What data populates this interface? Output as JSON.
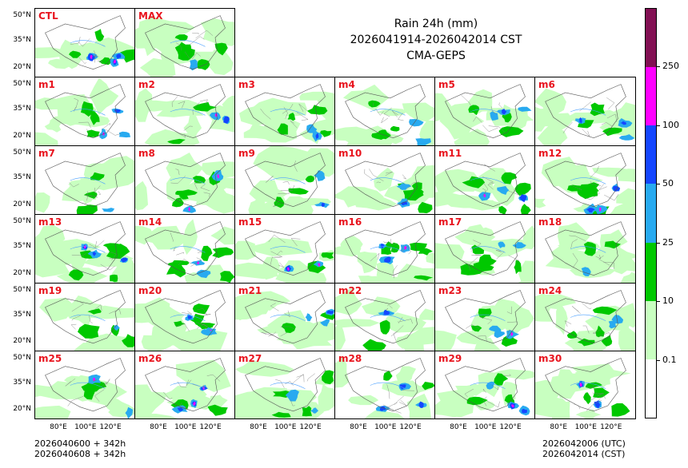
{
  "title": {
    "line1": "Rain 24h (mm)",
    "line2": "2026041914-2026042014 CST",
    "line3": "CMA-GEPS"
  },
  "footer": {
    "left_line1": "2026040600 + 342h",
    "left_line2": "2026040608 + 342h",
    "right_line1": "2026042006 (UTC)",
    "right_line2": "2026042014 (CST)"
  },
  "axes": {
    "lat_labels": [
      "50°N",
      "35°N",
      "20°N"
    ],
    "lon_labels": [
      "80°E",
      "100°E",
      "120°E"
    ]
  },
  "colorbar": {
    "labels": [
      "0.1",
      "10",
      "25",
      "50",
      "100",
      "250"
    ],
    "colors": [
      "#ffffff",
      "#c8ffc0",
      "#00c800",
      "#28aaf0",
      "#1446ff",
      "#ff00ff",
      "#821053"
    ]
  },
  "panels": {
    "top": [
      "CTL",
      "MAX"
    ],
    "members": [
      "m1",
      "m2",
      "m3",
      "m4",
      "m5",
      "m6",
      "m7",
      "m8",
      "m9",
      "m10",
      "m11",
      "m12",
      "m13",
      "m14",
      "m15",
      "m16",
      "m17",
      "m18",
      "m19",
      "m20",
      "m21",
      "m22",
      "m23",
      "m24",
      "m25",
      "m26",
      "m27",
      "m28",
      "m29",
      "m30"
    ]
  }
}
